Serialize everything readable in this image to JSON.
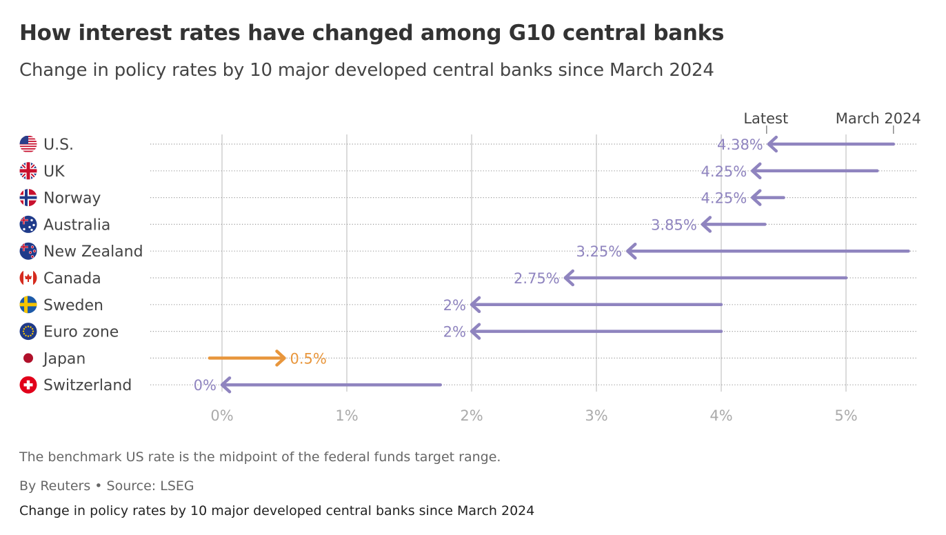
{
  "header": {
    "title": "How interest rates have changed among G10 central banks",
    "subtitle": "Change in policy rates by 10 major developed central banks since March 2024"
  },
  "chart_data": {
    "type": "arrow",
    "legend": {
      "end_label": "Latest",
      "start_label": "March 2024"
    },
    "x_ticks": [
      {
        "value": 0,
        "label": "0%"
      },
      {
        "value": 1,
        "label": "1%"
      },
      {
        "value": 2,
        "label": "2%"
      },
      {
        "value": 3,
        "label": "3%"
      },
      {
        "value": 4,
        "label": "4%"
      },
      {
        "value": 5,
        "label": "5%"
      }
    ],
    "xlim": [
      -0.58,
      5.6
    ],
    "colors": {
      "decrease": "#8f84bf",
      "increase": "#e8963c",
      "label_decrease": "#8f84bf",
      "label_increase": "#e8963c"
    },
    "series": [
      {
        "country": "U.S.",
        "flag": "us-flag-icon",
        "start": 5.38,
        "latest": 4.38,
        "label": "4.38%"
      },
      {
        "country": "UK",
        "flag": "uk-flag-icon",
        "start": 5.25,
        "latest": 4.25,
        "label": "4.25%"
      },
      {
        "country": "Norway",
        "flag": "norway-flag-icon",
        "start": 4.5,
        "latest": 4.25,
        "label": "4.25%"
      },
      {
        "country": "Australia",
        "flag": "australia-flag-icon",
        "start": 4.35,
        "latest": 3.85,
        "label": "3.85%"
      },
      {
        "country": "New Zealand",
        "flag": "new-zealand-flag-icon",
        "start": 5.5,
        "latest": 3.25,
        "label": "3.25%"
      },
      {
        "country": "Canada",
        "flag": "canada-flag-icon",
        "start": 5.0,
        "latest": 2.75,
        "label": "2.75%"
      },
      {
        "country": "Sweden",
        "flag": "sweden-flag-icon",
        "start": 4.0,
        "latest": 2.0,
        "label": "2%"
      },
      {
        "country": "Euro zone",
        "flag": "eu-flag-icon",
        "start": 4.0,
        "latest": 2.0,
        "label": "2%"
      },
      {
        "country": "Japan",
        "flag": "japan-flag-icon",
        "start": -0.1,
        "latest": 0.5,
        "label": "0.5%"
      },
      {
        "country": "Switzerland",
        "flag": "switzerland-flag-icon",
        "start": 1.75,
        "latest": 0.0,
        "label": "0%"
      }
    ]
  },
  "footer": {
    "note": "The benchmark US rate is the midpoint of the federal funds target range.",
    "source": "By Reuters • Source: LSEG",
    "caption": "Change in policy rates by 10 major developed central banks since March 2024"
  }
}
